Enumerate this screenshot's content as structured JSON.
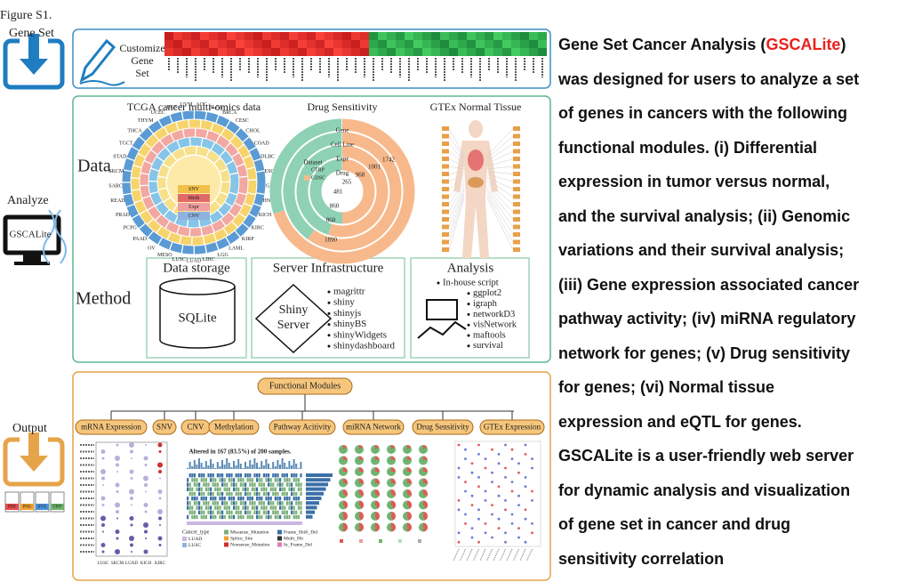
{
  "figure_label": "Figure S1.",
  "left": {
    "gene_set": "Gene Set",
    "analyze": "Analyze",
    "gscalite": "GSCALite",
    "output": "Output",
    "file_icons": [
      "PDF",
      "PNG",
      "SVG",
      "TIFF"
    ]
  },
  "customize": [
    "Customize",
    "Gene",
    "Set"
  ],
  "data_section": {
    "label": "Data",
    "tcga": {
      "title": "TCGA cancer multi-omics data",
      "cancers": [
        "ACC",
        "BLCA",
        "BRCA",
        "CESC",
        "CHOL",
        "COAD",
        "DLBC",
        "ESCA",
        "GBM",
        "HNSC",
        "KICH",
        "KIRC",
        "KIRP",
        "LAML",
        "LGG",
        "LIHC",
        "LUAD",
        "LUSC",
        "MESO",
        "OV",
        "PAAD",
        "PCPG",
        "PRAD",
        "READ",
        "SARC",
        "SKCM",
        "STAD",
        "TGCT",
        "THCA",
        "THYM",
        "UCEC",
        "UCS",
        "UVM"
      ],
      "center": [
        "SNV",
        "Meth",
        "Expr",
        "CNV"
      ]
    },
    "drug": {
      "title": "Drug Sensitivity",
      "rings": [
        "Gene",
        "Cell Line",
        "Expr",
        "Drug"
      ],
      "legend_title": "Dataset",
      "legend": [
        "CTRP",
        "GDSC"
      ],
      "numbers": [
        1742,
        1001,
        968,
        265,
        481,
        860,
        860,
        1890
      ]
    },
    "gtex": {
      "title": "GTEx Normal Tissue"
    }
  },
  "method_section": {
    "label": "Method",
    "storage": {
      "title": "Data storage",
      "db": "SQLite"
    },
    "server": {
      "title": "Server Infrastructure",
      "shiny": [
        "Shiny",
        "Server"
      ],
      "packages": [
        "magrittr",
        "shiny",
        "shinyjs",
        "shinyBS",
        "shinyWidgets",
        "shinydashboard"
      ]
    },
    "analysis": {
      "title": "Analysis",
      "items": [
        "In-house script",
        "ggplot2",
        "igraph",
        "networkD3",
        "visNetwork",
        "maftools",
        "survival"
      ]
    }
  },
  "output_section": {
    "title": "Functional Modules",
    "modules": [
      "mRNA Expression",
      "SNV",
      "CNV",
      "Methylation",
      "Pathway Acitivity",
      "miRNA Network",
      "Drug Sensitivity",
      "GTEx Expression"
    ],
    "oncoplot_title": "Altered in 167 (83.5%) of 200 samples.",
    "oncoplot_legend": {
      "title": "Cancer_type",
      "types": [
        "LUAD",
        "LUSC"
      ],
      "variants": [
        "Missense_Mutation",
        "Splice_Site",
        "Nonsense_Mutation",
        "Frame_Shift_Del",
        "Multi_Hit",
        "In_Frame_Del"
      ]
    },
    "dot_x": [
      "LUSC",
      "SKCM",
      "LUAD",
      "KICH",
      "KIRC"
    ]
  },
  "description": {
    "intro": "Gene Set Cancer Analysis (",
    "highlight": "GSCALite",
    "intro_end": ")",
    "lines": [
      "was designed for users to analyze a set",
      "of genes in cancers with the following",
      "functional modules. (i) Differential",
      "expression in tumor versus normal,",
      "and the survival analysis; (ii) Genomic",
      "variations and their survival analysis;",
      "(iii) Gene expression associated cancer",
      "pathway activity; (iv) miRNA regulatory",
      "network for genes; (v) Drug sensitivity",
      "for genes; (vi) Normal tissue",
      "expression and eQTL for genes.",
      "GSCALite is a user-friendly web server",
      "for dynamic analysis and visualization",
      "of gene set in cancer and drug",
      "sensitivity correlation"
    ]
  }
}
